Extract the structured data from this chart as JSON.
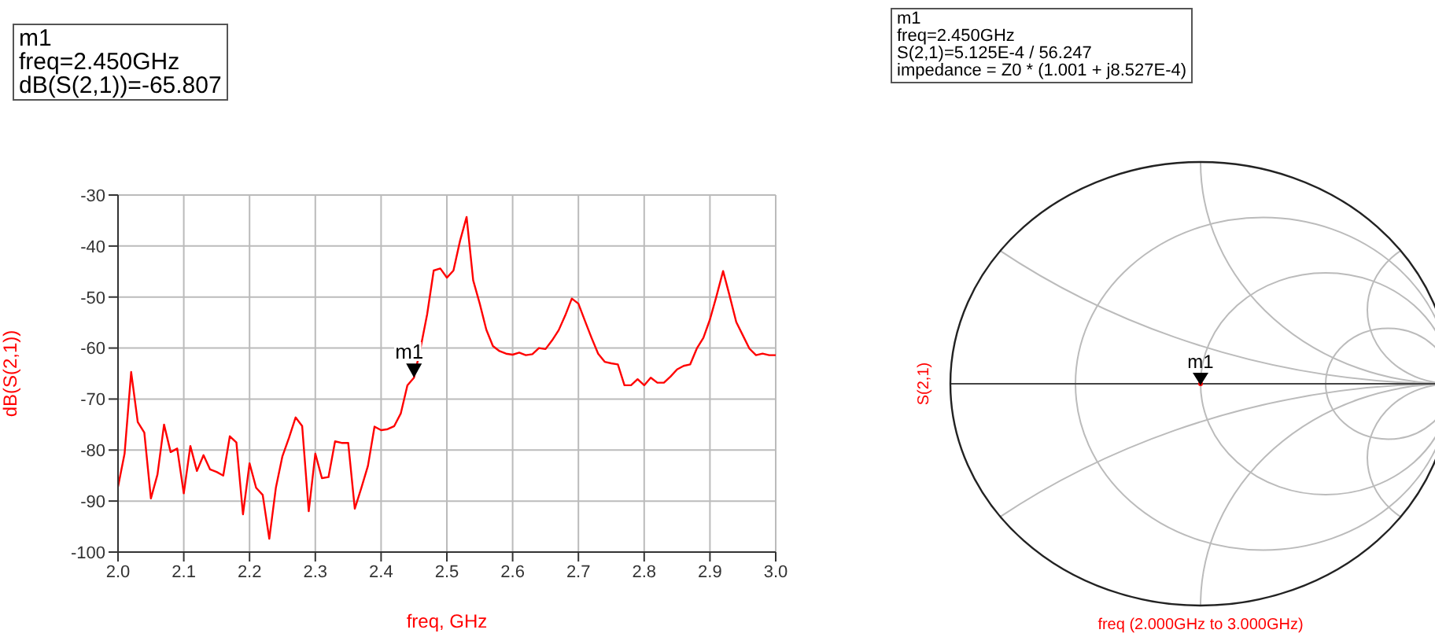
{
  "chart_data": [
    {
      "type": "line",
      "xlabel": "freq, GHz",
      "ylabel": "dB(S(2,1))",
      "x": [
        2.0,
        2.01,
        2.02,
        2.03,
        2.04,
        2.05,
        2.06,
        2.07,
        2.08,
        2.09,
        2.1,
        2.11,
        2.12,
        2.13,
        2.14,
        2.15,
        2.16,
        2.17,
        2.18,
        2.19,
        2.2,
        2.21,
        2.22,
        2.23,
        2.24,
        2.25,
        2.26,
        2.27,
        2.28,
        2.29,
        2.3,
        2.31,
        2.32,
        2.33,
        2.34,
        2.35,
        2.36,
        2.37,
        2.38,
        2.39,
        2.4,
        2.41,
        2.42,
        2.43,
        2.44,
        2.45,
        2.46,
        2.47,
        2.48,
        2.49,
        2.5,
        2.51,
        2.52,
        2.53,
        2.54,
        2.55,
        2.56,
        2.57,
        2.58,
        2.59,
        2.6,
        2.61,
        2.62,
        2.63,
        2.64,
        2.65,
        2.66,
        2.67,
        2.68,
        2.69,
        2.7,
        2.71,
        2.72,
        2.73,
        2.74,
        2.75,
        2.76,
        2.77,
        2.78,
        2.79,
        2.8,
        2.81,
        2.82,
        2.83,
        2.84,
        2.85,
        2.86,
        2.87,
        2.88,
        2.89,
        2.9,
        2.91,
        2.92,
        2.93,
        2.94,
        2.95,
        2.96,
        2.97,
        2.98,
        2.99,
        3.0
      ],
      "series": [
        {
          "color": "#ff0000",
          "values": [
            -87.2,
            -80.7,
            -64.7,
            -74.5,
            -76.6,
            -89.5,
            -84.8,
            -75,
            -80.4,
            -79.7,
            -88.5,
            -79.2,
            -84.1,
            -81,
            -83.8,
            -84.3,
            -85,
            -77.3,
            -78.5,
            -92.6,
            -82.6,
            -87.4,
            -88.8,
            -97.4,
            -87.4,
            -81.2,
            -77.6,
            -73.6,
            -75.3,
            -92,
            -80.7,
            -85.5,
            -85.3,
            -78.3,
            -78.6,
            -78.6,
            -91.5,
            -87.4,
            -83.1,
            -75.4,
            -76.1,
            -75.9,
            -75.3,
            -72.8,
            -67.3,
            -65.8,
            -60,
            -53.4,
            -44.8,
            -44.4,
            -46.2,
            -44.8,
            -39,
            -34.3,
            -46.7,
            -51.3,
            -56.4,
            -59.6,
            -60.6,
            -61.1,
            -61.3,
            -60.9,
            -61.4,
            -61.2,
            -60,
            -60.2,
            -58.5,
            -56.5,
            -53.6,
            -50.3,
            -51.3,
            -54.7,
            -58,
            -61.1,
            -62.7,
            -63,
            -63.2,
            -67.3,
            -67.3,
            -66.1,
            -67.3,
            -65.8,
            -66.8,
            -66.8,
            -65.6,
            -64.2,
            -63.5,
            -63.2,
            -60.1,
            -58,
            -54.4,
            -49.8,
            -44.9,
            -49.8,
            -54.9,
            -57.5,
            -60.1,
            -61.4,
            -61.1,
            -61.4,
            -61.4
          ]
        }
      ],
      "xlim": [
        2.0,
        3.0
      ],
      "xticks": [
        {
          "value": 2.0,
          "label": "2.0"
        },
        {
          "value": 2.1,
          "label": "2.1"
        },
        {
          "value": 2.2,
          "label": "2.2"
        },
        {
          "value": 2.3,
          "label": "2.3"
        },
        {
          "value": 2.4,
          "label": "2.4"
        },
        {
          "value": 2.5,
          "label": "2.5"
        },
        {
          "value": 2.6,
          "label": "2.6"
        },
        {
          "value": 2.7,
          "label": "2.7"
        },
        {
          "value": 2.8,
          "label": "2.8"
        },
        {
          "value": 2.9,
          "label": "2.9"
        },
        {
          "value": 3.0,
          "label": "3.0"
        }
      ],
      "ylim": [
        -100,
        -30
      ],
      "yticks": [
        -100,
        -90,
        -80,
        -70,
        -60,
        -50,
        -40,
        -30
      ],
      "grid": true,
      "annotations": [
        "m1\nfreq=2.450GHz\ndB(S(2,1))=-65.807",
        {
          "text": "m1",
          "x": 2.45,
          "y": -65.807
        }
      ]
    },
    {
      "type": "other",
      "xlabel": "freq (2.000GHz to 3.000GHz)",
      "ylabel": "S(2,1)",
      "annotations": [
        "m1\nfreq=2.450GHz\nS(2,1)=5.125E-4 / 56.247\nimpedance = Z0 * (1.001 + j8.527E-4)",
        "m1"
      ]
    }
  ]
}
